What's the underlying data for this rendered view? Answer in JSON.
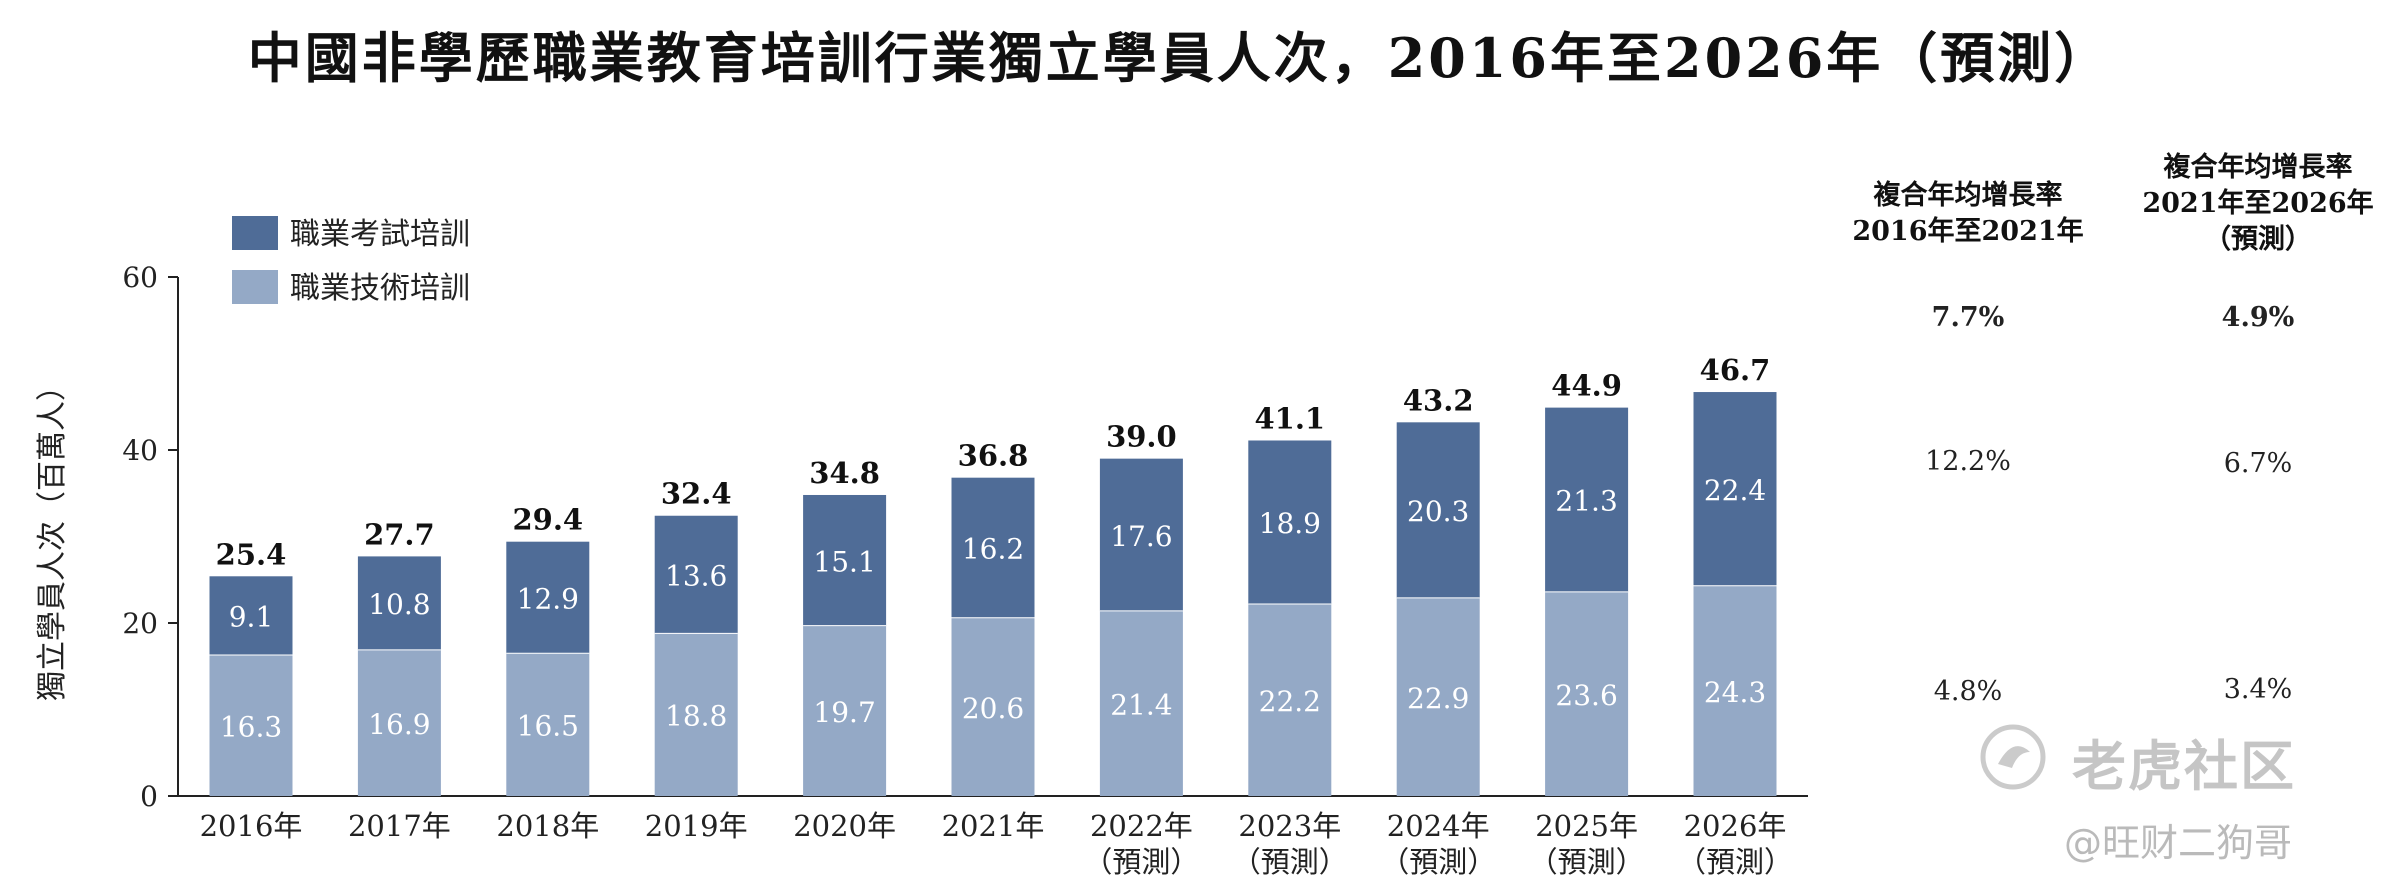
{
  "title": "中國非學歷職業教育培訓行業獨立學員人次，2016年至2026年（預測）",
  "chart_data": {
    "type": "bar",
    "stacked": true,
    "categories": [
      "2016年",
      "2017年",
      "2018年",
      "2019年",
      "2020年",
      "2021年",
      "2022年\n（預測）",
      "2023年\n（預測）",
      "2024年\n（預測）",
      "2025年\n（預測）",
      "2026年\n（預測）"
    ],
    "series": [
      {
        "name": "職業技術培訓",
        "color": "#94a9c6",
        "values": [
          16.3,
          16.9,
          16.5,
          18.8,
          19.7,
          20.6,
          21.4,
          22.2,
          22.9,
          23.6,
          24.3
        ]
      },
      {
        "name": "職業考試培訓",
        "color": "#4f6c97",
        "values": [
          9.1,
          10.8,
          12.9,
          13.6,
          15.1,
          16.2,
          17.6,
          18.9,
          20.3,
          21.3,
          22.4
        ]
      }
    ],
    "totals": [
      "25.4",
      "27.7",
      "29.4",
      "32.4",
      "34.8",
      "36.8",
      "39.0",
      "41.1",
      "43.2",
      "44.9",
      "46.7"
    ],
    "ylabel": "獨立學員人次（百萬人）",
    "xlabel": "",
    "ylim": [
      0,
      60
    ],
    "yticks": [
      0,
      20,
      40,
      60
    ],
    "legend": [
      "職業考試培訓",
      "職業技術培訓"
    ],
    "legend_position": "top-left",
    "grid": false
  },
  "cagr_table": {
    "columns": [
      {
        "header": [
          "複合年均增長率",
          "2016年至2021年"
        ],
        "total": "7.7%",
        "exam": "12.2%",
        "technical": "4.8%"
      },
      {
        "header": [
          "複合年均增長率",
          "2021年至2026年",
          "（預測）"
        ],
        "total": "4.9%",
        "exam": "6.7%",
        "technical": "3.4%"
      }
    ]
  },
  "watermark": {
    "text": "老虎社区",
    "handle": "@旺财二狗哥"
  }
}
